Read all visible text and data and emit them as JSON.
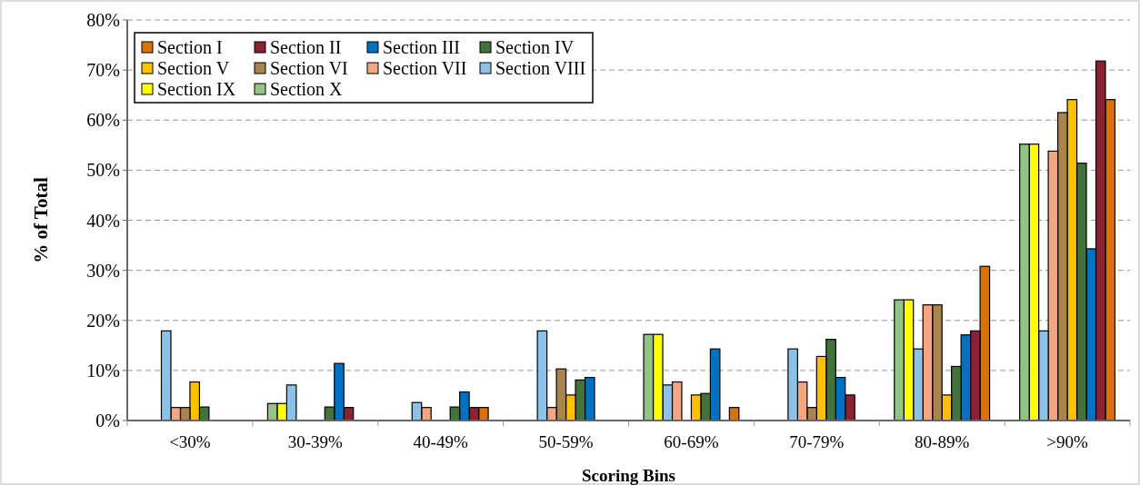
{
  "chart_data": {
    "type": "bar",
    "xlabel": "Scoring Bins",
    "ylabel": "% of Total",
    "categories": [
      "<30%",
      "30-39%",
      "40-49%",
      "50-59%",
      "60-69%",
      "70-79%",
      "80-89%",
      ">90%"
    ],
    "series": [
      {
        "name": "Section I",
        "color": "#d97306",
        "values": [
          0,
          0,
          2.6,
          0,
          2.6,
          0,
          30.8,
          64.1
        ]
      },
      {
        "name": "Section II",
        "color": "#8b2231",
        "values": [
          0,
          2.6,
          2.6,
          0,
          0,
          5.1,
          17.9,
          71.8
        ]
      },
      {
        "name": "Section III",
        "color": "#0070c0",
        "values": [
          0,
          11.4,
          5.7,
          8.6,
          14.3,
          8.6,
          17.1,
          34.3
        ]
      },
      {
        "name": "Section IV",
        "color": "#43733a",
        "values": [
          2.7,
          2.7,
          2.7,
          8.1,
          5.4,
          16.2,
          10.8,
          51.4
        ]
      },
      {
        "name": "Section V",
        "color": "#ffc000",
        "values": [
          7.7,
          0,
          0,
          5.1,
          5.1,
          12.8,
          5.1,
          64.1
        ]
      },
      {
        "name": "Section VI",
        "color": "#a9844f",
        "values": [
          2.6,
          0,
          0,
          10.3,
          0,
          2.6,
          23.1,
          61.5
        ]
      },
      {
        "name": "Section VII",
        "color": "#f4a582",
        "values": [
          2.6,
          0,
          2.6,
          2.6,
          7.7,
          7.7,
          23.1,
          53.8
        ]
      },
      {
        "name": "Section VIII",
        "color": "#8bc2e6",
        "values": [
          17.9,
          7.1,
          3.6,
          17.9,
          7.1,
          14.3,
          14.3,
          17.9
        ]
      },
      {
        "name": "Section IX",
        "color": "#ffff00",
        "values": [
          0,
          3.4,
          0,
          0,
          17.2,
          0,
          24.1,
          55.2
        ]
      },
      {
        "name": "Section X",
        "color": "#92c387",
        "values": [
          0,
          3.4,
          0,
          0,
          17.2,
          0,
          24.1,
          55.2
        ]
      }
    ],
    "ylim": [
      0,
      80
    ],
    "yticks": [
      {
        "value": 0,
        "label": "0%"
      },
      {
        "value": 10,
        "label": "10%"
      },
      {
        "value": 20,
        "label": "20%"
      },
      {
        "value": 30,
        "label": "30%"
      },
      {
        "value": 40,
        "label": "40%"
      },
      {
        "value": 50,
        "label": "50%"
      },
      {
        "value": 60,
        "label": "60%"
      },
      {
        "value": 70,
        "label": "70%"
      },
      {
        "value": 80,
        "label": "80%"
      }
    ],
    "grid": "y",
    "legend": "top left"
  }
}
